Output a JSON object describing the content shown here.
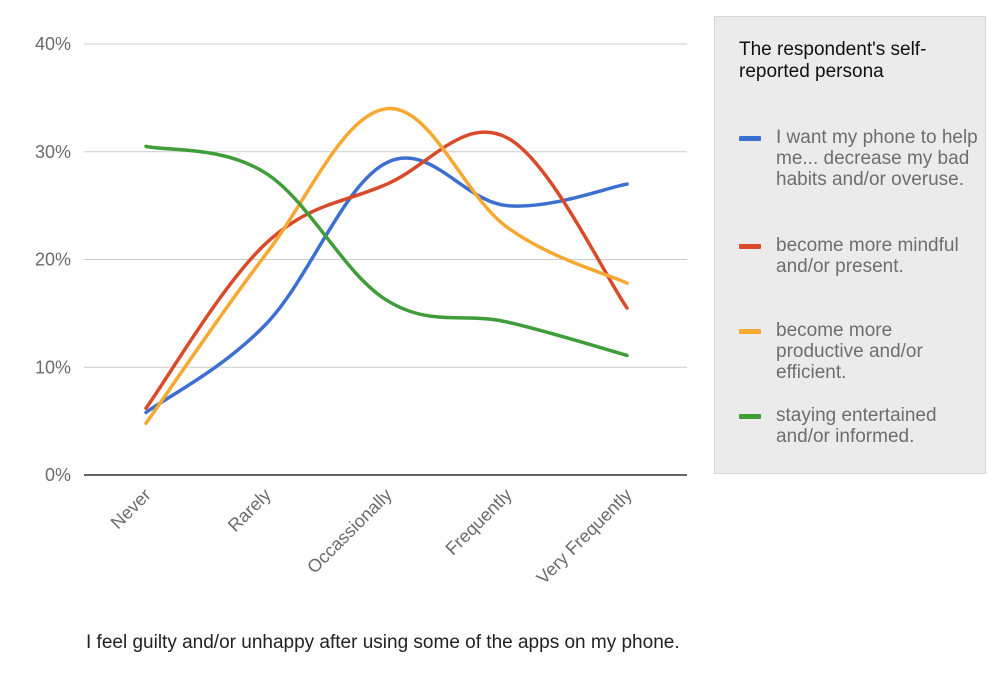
{
  "chart_data": {
    "type": "line",
    "categories": [
      "Never",
      "Rarely",
      "Occassionally",
      "Frequently",
      "Very Frequently"
    ],
    "y_ticks": [
      "0%",
      "10%",
      "20%",
      "30%",
      "40%"
    ],
    "ylim": [
      0,
      40
    ],
    "grid": true,
    "legend_position": "right",
    "legend_title": "The respondent's self-reported persona",
    "xlabel": "I feel guilty and/or unhappy after using some of the apps on my phone.",
    "series": [
      {
        "name": "I want my phone to help me... decrease my bad habits and/or overuse.",
        "color": "#3c6fd0",
        "values": [
          5.8,
          14,
          29,
          25,
          27
        ]
      },
      {
        "name": "become more mindful and/or present.",
        "color": "#d94a2a",
        "values": [
          6.2,
          21.5,
          27,
          31.3,
          15.5
        ]
      },
      {
        "name": "become more productive and/or efficient.",
        "color": "#f6a830",
        "values": [
          4.8,
          20.5,
          34,
          23,
          17.8
        ]
      },
      {
        "name": "staying entertained and/or informed.",
        "color": "#3f9d3a",
        "values": [
          30.5,
          28,
          16.2,
          14.2,
          11.1
        ]
      }
    ]
  }
}
